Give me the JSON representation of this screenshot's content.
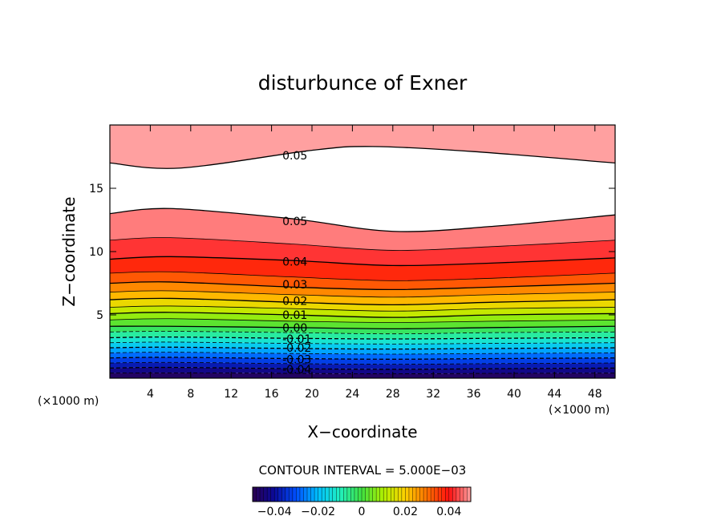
{
  "chart_data": {
    "type": "contour",
    "title": "disturbunce of Exner",
    "xlabel": "X−coordinate",
    "ylabel": "Z−coordinate",
    "x_unit": "(×1000 m)",
    "x_unit_left": "(×1000 m)",
    "xlim": [
      0,
      50
    ],
    "ylim": [
      0,
      20
    ],
    "x_ticks": [
      4,
      8,
      12,
      16,
      20,
      24,
      28,
      32,
      36,
      40,
      44,
      48
    ],
    "y_ticks": [
      5,
      10,
      15
    ],
    "contour_interval_text": "CONTOUR INTERVAL = 5.000E−03",
    "contour_interval": 0.005,
    "value_range": [
      -0.05,
      0.05
    ],
    "negative_contours": "dashed",
    "above_range_color": "#ffffff",
    "contour_labels": [
      {
        "text": "0.05",
        "x": 18.5,
        "z": 17.6
      },
      {
        "text": "0.05",
        "x": 18.5,
        "z": 12.4
      },
      {
        "text": "0.04",
        "x": 18.5,
        "z": 9.2
      },
      {
        "text": "0.03",
        "x": 18.5,
        "z": 7.4
      },
      {
        "text": "0.02",
        "x": 18.5,
        "z": 6.1
      },
      {
        "text": "0.01",
        "x": 18.5,
        "z": 5.0
      },
      {
        "text": "0.00",
        "x": 18.5,
        "z": 4.0
      },
      {
        "text": "-0.01",
        "x": 18.5,
        "z": 3.1
      },
      {
        "text": "-0.02",
        "x": 18.5,
        "z": 2.4
      },
      {
        "text": "-0.03",
        "x": 18.5,
        "z": 1.5
      },
      {
        "text": "-0.04",
        "x": 18.5,
        "z": 0.7
      }
    ],
    "colorbar": {
      "labels": [
        "−0.04",
        "−0.02",
        "0",
        "0.02",
        "0.04"
      ],
      "values": [
        -0.04,
        -0.02,
        0,
        0.02,
        0.04
      ],
      "colors": [
        "#2a0050",
        "#0a0a9a",
        "#0050ff",
        "#00c0ff",
        "#20f0c0",
        "#40e040",
        "#b0f000",
        "#ffd000",
        "#ff7000",
        "#ff1010",
        "#ffa0a0"
      ]
    },
    "level_profiles": [
      {
        "value": 0.05,
        "z_at_x": [
          [
            0,
            17.0
          ],
          [
            7,
            16.6
          ],
          [
            20,
            18.0
          ],
          [
            26,
            18.3
          ],
          [
            36,
            17.9
          ],
          [
            50,
            17.0
          ]
        ],
        "labeled": true
      },
      {
        "value": 0.05,
        "z_at_x": [
          [
            0,
            13.0
          ],
          [
            6,
            13.4
          ],
          [
            18,
            12.6
          ],
          [
            28,
            11.6
          ],
          [
            38,
            12.0
          ],
          [
            50,
            12.9
          ]
        ],
        "labeled": true
      },
      {
        "value": 0.045,
        "z_at_x": [
          [
            0,
            10.9
          ],
          [
            6,
            11.1
          ],
          [
            18,
            10.6
          ],
          [
            28,
            10.1
          ],
          [
            38,
            10.4
          ],
          [
            50,
            10.9
          ]
        ],
        "labeled": false
      },
      {
        "value": 0.04,
        "z_at_x": [
          [
            0,
            9.4
          ],
          [
            6,
            9.6
          ],
          [
            18,
            9.3
          ],
          [
            28,
            8.9
          ],
          [
            38,
            9.1
          ],
          [
            50,
            9.5
          ]
        ],
        "labeled": true
      },
      {
        "value": 0.035,
        "z_at_x": [
          [
            0,
            8.3
          ],
          [
            6,
            8.4
          ],
          [
            18,
            8.0
          ],
          [
            28,
            7.7
          ],
          [
            38,
            7.9
          ],
          [
            50,
            8.3
          ]
        ],
        "labeled": false
      },
      {
        "value": 0.03,
        "z_at_x": [
          [
            0,
            7.5
          ],
          [
            6,
            7.6
          ],
          [
            18,
            7.2
          ],
          [
            28,
            7.0
          ],
          [
            38,
            7.2
          ],
          [
            50,
            7.5
          ]
        ],
        "labeled": true
      },
      {
        "value": 0.025,
        "z_at_x": [
          [
            0,
            6.8
          ],
          [
            6,
            6.9
          ],
          [
            18,
            6.6
          ],
          [
            28,
            6.4
          ],
          [
            38,
            6.6
          ],
          [
            50,
            6.8
          ]
        ],
        "labeled": false
      },
      {
        "value": 0.02,
        "z_at_x": [
          [
            0,
            6.2
          ],
          [
            6,
            6.3
          ],
          [
            18,
            6.0
          ],
          [
            28,
            5.8
          ],
          [
            38,
            6.0
          ],
          [
            50,
            6.2
          ]
        ],
        "labeled": true
      },
      {
        "value": 0.015,
        "z_at_x": [
          [
            0,
            5.6
          ],
          [
            6,
            5.7
          ],
          [
            18,
            5.5
          ],
          [
            28,
            5.3
          ],
          [
            38,
            5.5
          ],
          [
            50,
            5.6
          ]
        ],
        "labeled": false
      },
      {
        "value": 0.01,
        "z_at_x": [
          [
            0,
            5.1
          ],
          [
            6,
            5.2
          ],
          [
            18,
            5.0
          ],
          [
            28,
            4.8
          ],
          [
            38,
            5.0
          ],
          [
            50,
            5.1
          ]
        ],
        "labeled": true
      },
      {
        "value": 0.005,
        "z_at_x": [
          [
            0,
            4.6
          ],
          [
            6,
            4.7
          ],
          [
            18,
            4.5
          ],
          [
            28,
            4.4
          ],
          [
            38,
            4.5
          ],
          [
            50,
            4.6
          ]
        ],
        "labeled": false
      },
      {
        "value": 0.0,
        "z_at_x": [
          [
            0,
            4.1
          ],
          [
            6,
            4.1
          ],
          [
            18,
            4.0
          ],
          [
            28,
            3.9
          ],
          [
            38,
            4.0
          ],
          [
            50,
            4.1
          ]
        ],
        "labeled": true
      },
      {
        "value": -0.005,
        "z_at_x": [
          [
            0,
            3.65
          ],
          [
            6,
            3.7
          ],
          [
            18,
            3.6
          ],
          [
            28,
            3.5
          ],
          [
            38,
            3.6
          ],
          [
            50,
            3.65
          ]
        ],
        "labeled": false
      },
      {
        "value": -0.01,
        "z_at_x": [
          [
            0,
            3.2
          ],
          [
            6,
            3.25
          ],
          [
            18,
            3.15
          ],
          [
            28,
            3.1
          ],
          [
            38,
            3.15
          ],
          [
            50,
            3.2
          ]
        ],
        "labeled": true
      },
      {
        "value": -0.015,
        "z_at_x": [
          [
            0,
            2.8
          ],
          [
            6,
            2.85
          ],
          [
            18,
            2.75
          ],
          [
            28,
            2.7
          ],
          [
            38,
            2.75
          ],
          [
            50,
            2.8
          ]
        ],
        "labeled": false
      },
      {
        "value": -0.02,
        "z_at_x": [
          [
            0,
            2.4
          ],
          [
            6,
            2.45
          ],
          [
            18,
            2.35
          ],
          [
            28,
            2.3
          ],
          [
            38,
            2.35
          ],
          [
            50,
            2.4
          ]
        ],
        "labeled": true
      },
      {
        "value": -0.025,
        "z_at_x": [
          [
            0,
            2.0
          ],
          [
            6,
            2.05
          ],
          [
            18,
            1.95
          ],
          [
            28,
            1.9
          ],
          [
            38,
            1.95
          ],
          [
            50,
            2.0
          ]
        ],
        "labeled": false
      },
      {
        "value": -0.03,
        "z_at_x": [
          [
            0,
            1.6
          ],
          [
            6,
            1.65
          ],
          [
            18,
            1.55
          ],
          [
            28,
            1.5
          ],
          [
            38,
            1.55
          ],
          [
            50,
            1.6
          ]
        ],
        "labeled": true
      },
      {
        "value": -0.035,
        "z_at_x": [
          [
            0,
            1.2
          ],
          [
            6,
            1.25
          ],
          [
            18,
            1.15
          ],
          [
            28,
            1.1
          ],
          [
            38,
            1.15
          ],
          [
            50,
            1.2
          ]
        ],
        "labeled": false
      },
      {
        "value": -0.04,
        "z_at_x": [
          [
            0,
            0.8
          ],
          [
            6,
            0.85
          ],
          [
            18,
            0.75
          ],
          [
            28,
            0.7
          ],
          [
            38,
            0.75
          ],
          [
            50,
            0.8
          ]
        ],
        "labeled": true
      },
      {
        "value": -0.045,
        "z_at_x": [
          [
            0,
            0.4
          ],
          [
            6,
            0.42
          ],
          [
            18,
            0.38
          ],
          [
            28,
            0.35
          ],
          [
            38,
            0.38
          ],
          [
            50,
            0.4
          ]
        ],
        "labeled": false
      }
    ]
  }
}
